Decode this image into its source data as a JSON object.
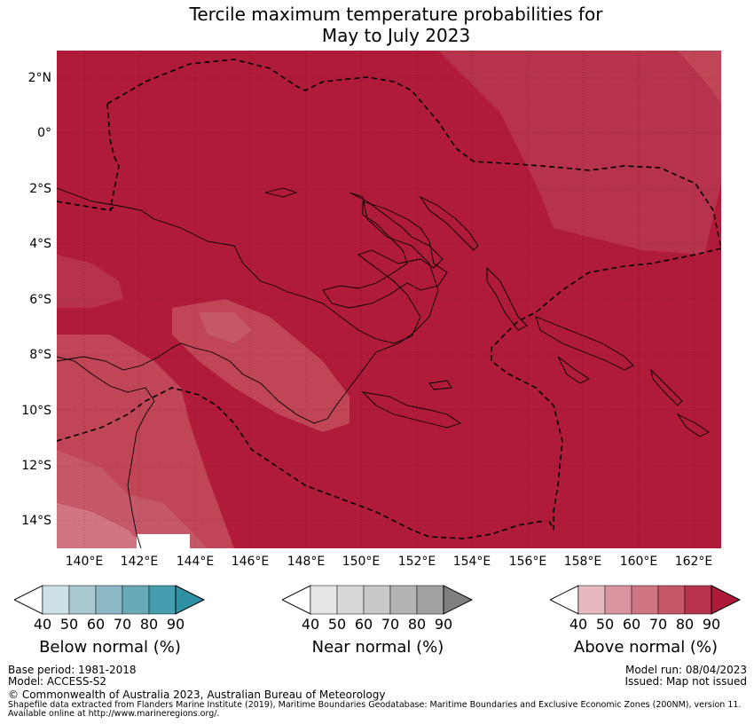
{
  "title": {
    "line1": "Tercile maximum temperature probabilities for",
    "line2": "May to July 2023"
  },
  "map": {
    "lat_labels": [
      "2°N",
      "0°",
      "2°S",
      "4°S",
      "6°S",
      "8°S",
      "10°S",
      "12°S",
      "14°S"
    ],
    "lon_labels": [
      "140°E",
      "142°E",
      "144°E",
      "146°E",
      "148°E",
      "150°E",
      "152°E",
      "154°E",
      "156°E",
      "158°E",
      "160°E",
      "162°E"
    ],
    "lat_range": [
      -15,
      3
    ],
    "lon_range": [
      139,
      163
    ],
    "base_color": "#b11b3a"
  },
  "legends": {
    "below": {
      "title": "Below normal (%)",
      "ticks": [
        "40",
        "50",
        "60",
        "70",
        "80",
        "90"
      ],
      "colors": [
        "#cde2e8",
        "#a8c9d1",
        "#8bb8c4",
        "#6aa9b8",
        "#459eb0",
        "#2f8fa3"
      ]
    },
    "near": {
      "title": "Near normal (%)",
      "ticks": [
        "40",
        "50",
        "60",
        "70",
        "80",
        "90"
      ],
      "colors": [
        "#e6e6e6",
        "#d8d8d8",
        "#c8c8c8",
        "#b4b4b4",
        "#a1a1a1",
        "#7f7f7f"
      ]
    },
    "above": {
      "title": "Above normal (%)",
      "ticks": [
        "40",
        "50",
        "60",
        "70",
        "80",
        "90"
      ],
      "colors": [
        "#e6b9c0",
        "#d9959f",
        "#d07582",
        "#c55867",
        "#b7324c",
        "#ac1a37"
      ]
    }
  },
  "footer": {
    "base_period": "Base period: 1981-2018",
    "model": "Model: ACCESS-S2",
    "model_run": "Model run: 08/04/2023",
    "issued": "Issued: Map not issued",
    "copyright": "© Commonwealth of Australia 2023, Australian Bureau of Meteorology",
    "shapefile_line1": "Shapefile data extracted from Flanders Marine Institute (2019), Maritime Boundaries Geodatabase: Maritime Boundaries and Exclusive Economic Zones (200NM), version 11.",
    "shapefile_line2": "Available online at http://www.marineregions.org/."
  }
}
